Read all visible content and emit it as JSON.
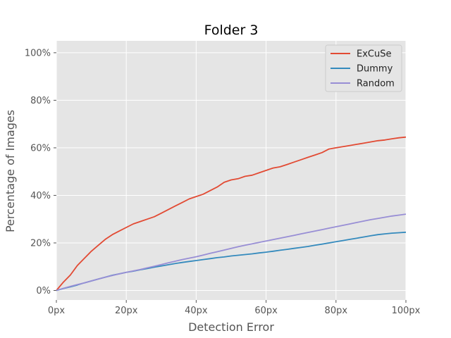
{
  "chart_data": {
    "type": "line",
    "title": "Folder 3",
    "xlabel": "Detection Error",
    "ylabel": "Percentage of Images",
    "x_unit": "px",
    "y_unit": "%",
    "xlim": [
      0,
      100
    ],
    "ylim": [
      -4,
      105
    ],
    "x_ticks": [
      "0px",
      "20px",
      "40px",
      "60px",
      "80px",
      "100px"
    ],
    "y_ticks": [
      "0%",
      "20%",
      "40%",
      "60%",
      "80%",
      "100%"
    ],
    "grid": true,
    "legend_position": "top-right",
    "x": [
      0,
      2,
      4,
      6,
      8,
      10,
      12,
      14,
      16,
      18,
      20,
      22,
      24,
      26,
      28,
      30,
      32,
      34,
      36,
      38,
      40,
      42,
      44,
      46,
      48,
      50,
      52,
      54,
      56,
      58,
      60,
      62,
      64,
      66,
      68,
      70,
      72,
      74,
      76,
      78,
      80,
      82,
      84,
      86,
      88,
      90,
      92,
      94,
      96,
      98,
      100
    ],
    "series": [
      {
        "name": "ExCuSe",
        "color": "#E24A33",
        "values": [
          0,
          3.5,
          6.5,
          10.5,
          13.5,
          16.5,
          19,
          21.5,
          23.5,
          25,
          26.5,
          28,
          29,
          30,
          31,
          32.5,
          34,
          35.5,
          37,
          38.5,
          39.5,
          40.5,
          42,
          43.5,
          45.5,
          46.5,
          47,
          48,
          48.5,
          49.5,
          50.5,
          51.5,
          52,
          53,
          54,
          55,
          56,
          57,
          58,
          59.5,
          60,
          60.5,
          61,
          61.5,
          62,
          62.5,
          63,
          63.3,
          63.8,
          64.2,
          64.5
        ]
      },
      {
        "name": "Dummy",
        "color": "#348ABD",
        "values": [
          0,
          0.8,
          1.5,
          2.3,
          3.2,
          4.0,
          4.8,
          5.6,
          6.4,
          7.0,
          7.6,
          8.1,
          8.7,
          9.2,
          9.8,
          10.3,
          10.8,
          11.3,
          11.8,
          12.2,
          12.6,
          13.0,
          13.4,
          13.8,
          14.1,
          14.5,
          14.8,
          15.1,
          15.4,
          15.8,
          16.1,
          16.5,
          16.9,
          17.3,
          17.7,
          18.1,
          18.5,
          19.0,
          19.5,
          20.0,
          20.5,
          21.0,
          21.5,
          22.0,
          22.5,
          23.0,
          23.5,
          23.8,
          24.1,
          24.3,
          24.5
        ]
      },
      {
        "name": "Random",
        "color": "#988ED5",
        "values": [
          0,
          0.9,
          1.7,
          2.5,
          3.2,
          4.0,
          4.8,
          5.6,
          6.3,
          7.0,
          7.6,
          8.2,
          8.8,
          9.5,
          10.2,
          10.9,
          11.6,
          12.3,
          13.0,
          13.6,
          14.2,
          14.9,
          15.6,
          16.3,
          17.0,
          17.7,
          18.4,
          19.0,
          19.6,
          20.2,
          20.8,
          21.4,
          22.0,
          22.6,
          23.2,
          23.8,
          24.4,
          25.0,
          25.6,
          26.2,
          26.8,
          27.4,
          28.0,
          28.6,
          29.2,
          29.8,
          30.3,
          30.8,
          31.3,
          31.7,
          32.1
        ]
      }
    ]
  }
}
